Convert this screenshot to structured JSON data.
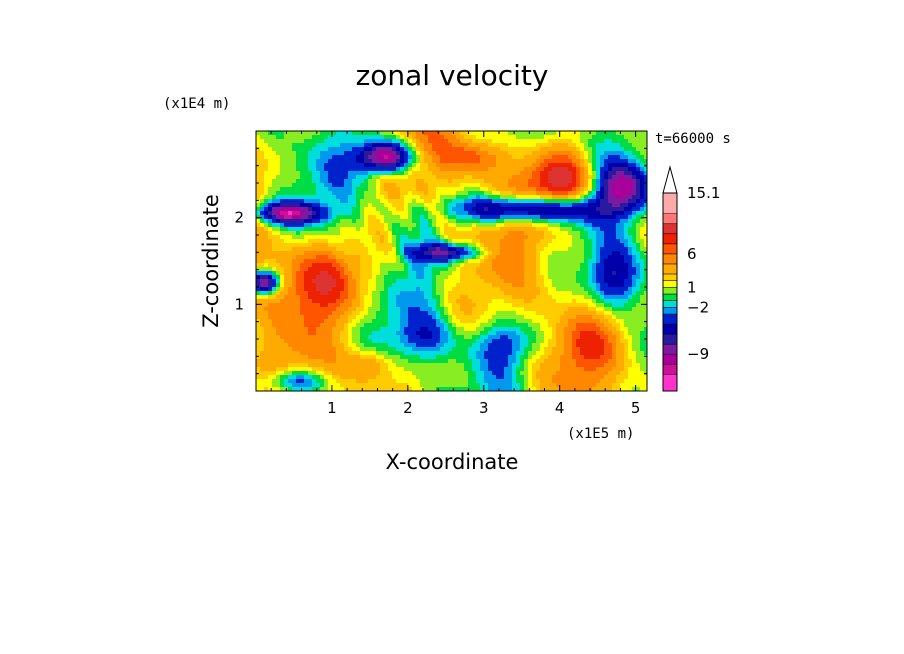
{
  "chart_data": {
    "type": "heatmap",
    "title": "zonal velocity",
    "xlabel": "X-coordinate",
    "ylabel": "Z-coordinate",
    "x_multiplier_label": "(x1E5 m)",
    "y_multiplier_label": "(x1E4 m)",
    "time_label": "t=66000 s",
    "xlim": [
      0,
      5.15
    ],
    "ylim": [
      0,
      3.0
    ],
    "x_ticks": [
      1,
      2,
      3,
      4,
      5
    ],
    "y_ticks": [
      1,
      2
    ],
    "x_tick_labels": [
      "1",
      "2",
      "3",
      "4",
      "5"
    ],
    "y_tick_labels": [
      "1",
      "2"
    ],
    "colorbar": {
      "levels": [
        -14.5,
        -12,
        -10.5,
        -9,
        -7.5,
        -6,
        -4.5,
        -3,
        -2,
        -1,
        0,
        1,
        2,
        3,
        4.5,
        6,
        7.5,
        9,
        10.5,
        12,
        15.1
      ],
      "colors": [
        "#ff33cc",
        "#cc1199",
        "#aa0099",
        "#7a1aa0",
        "#2a1aa0",
        "#0000aa",
        "#0022cc",
        "#0099ee",
        "#00dddd",
        "#00dd44",
        "#88ee22",
        "#ffff00",
        "#ffcc00",
        "#ffaa00",
        "#ff8800",
        "#ff5500",
        "#ee2200",
        "#dd3333",
        "#ff7777",
        "#ffaaaa",
        "#ffcccc"
      ],
      "labels": [
        "15.1",
        "6",
        "1",
        "−2",
        "−9"
      ],
      "label_values": [
        15.1,
        6,
        1,
        -2,
        -9
      ],
      "extend_max": true
    },
    "grid": false
  },
  "colors": {
    "background": "#ffffff",
    "axis": "#000000"
  }
}
